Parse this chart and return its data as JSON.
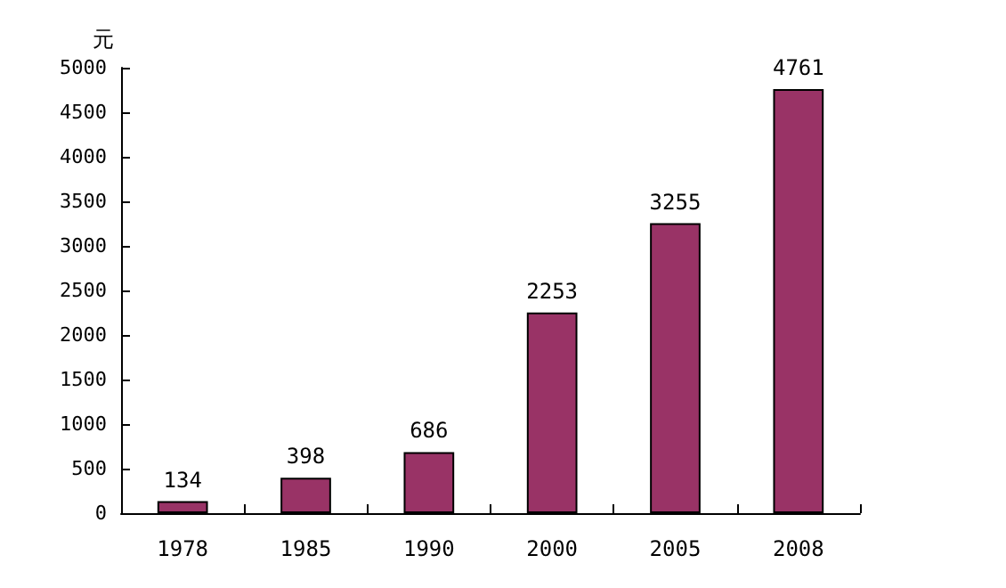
{
  "chart_data": {
    "type": "bar",
    "ylabel": "元",
    "categories": [
      "1978",
      "1985",
      "1990",
      "2000",
      "2005",
      "2008"
    ],
    "values": [
      134,
      398,
      686,
      2253,
      3255,
      4761
    ],
    "color": "#993366",
    "ylim": [
      0,
      5000
    ],
    "yticks": [
      0,
      500,
      1000,
      1500,
      2000,
      2500,
      3000,
      3500,
      4000,
      4500,
      5000
    ],
    "grid": false,
    "data_labels": true
  }
}
